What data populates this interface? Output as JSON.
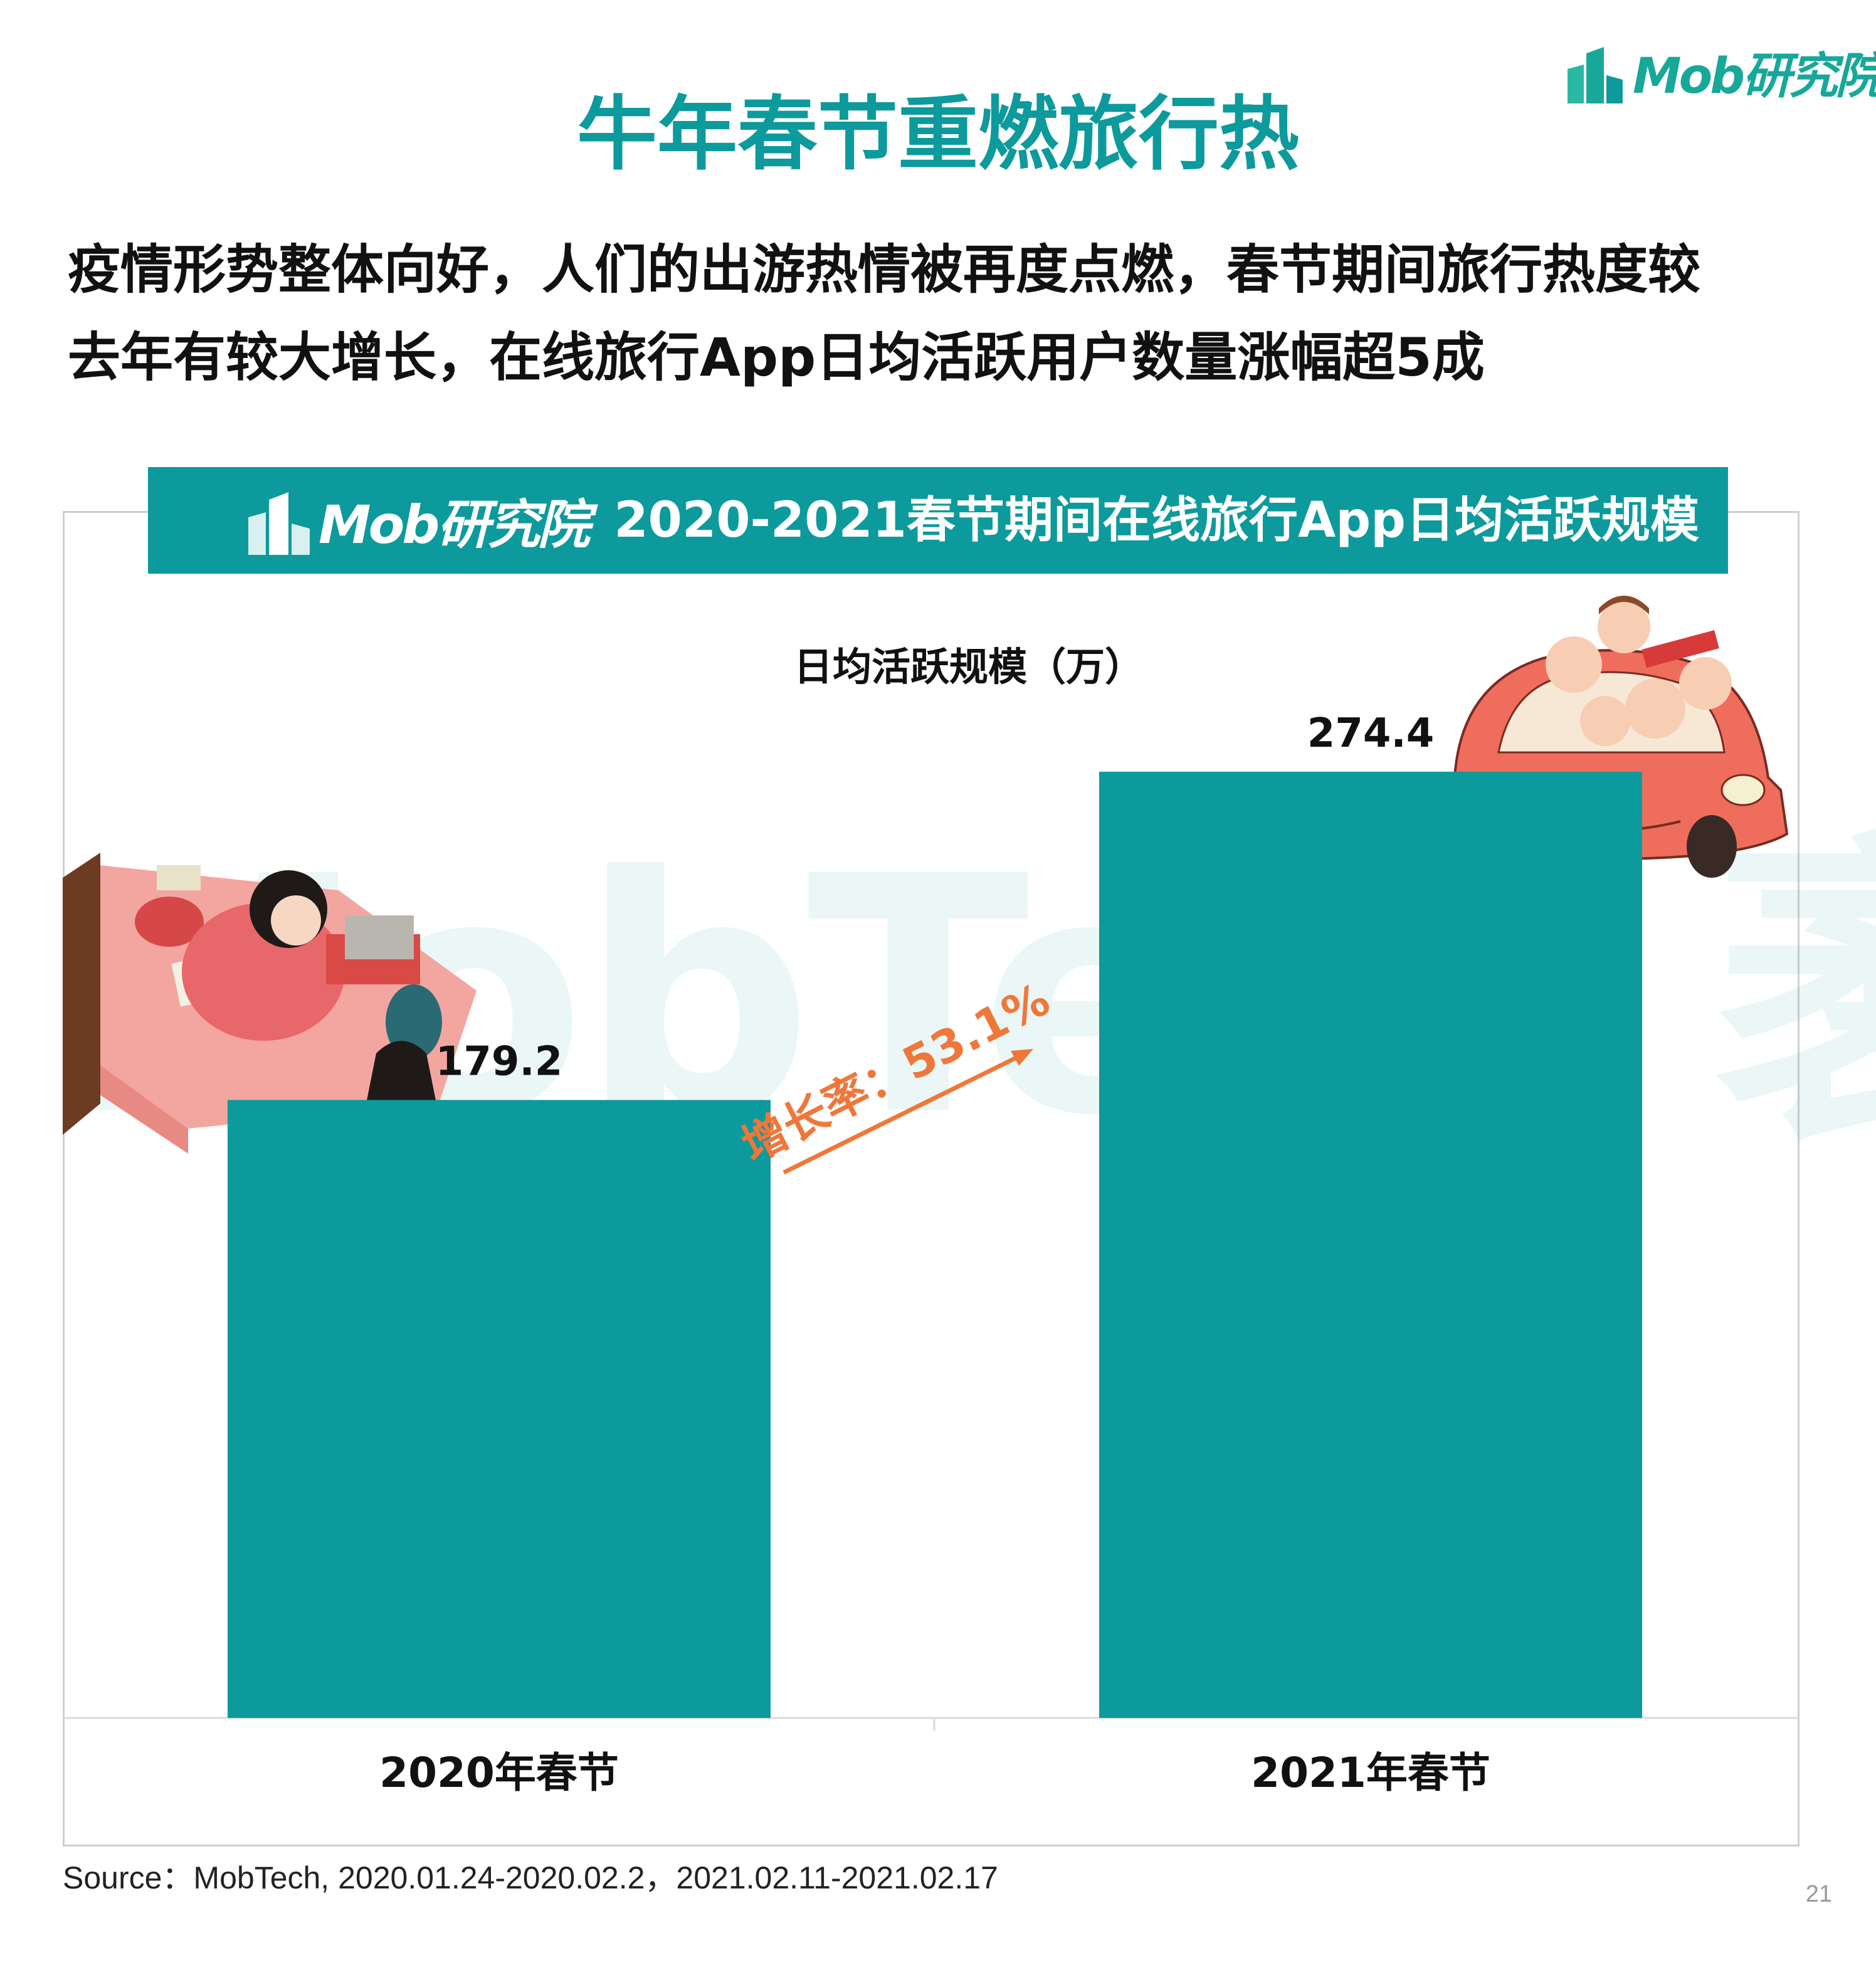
{
  "header": {
    "logo_text": "Mob研究院",
    "title": "牛年春节重燃旅行热",
    "subtitle_line1": "疫情形势整体向好，人们的出游热情被再度点燃，春节期间旅行热度较",
    "subtitle_line2": "去年有较大增长，在线旅行App日均活跃用户数量涨幅超5成"
  },
  "banner": {
    "logo_text": "Mob研究院",
    "title": "2020-2021春节期间在线旅行App日均活跃规模"
  },
  "watermark": "MobTech 袤博",
  "chart_data": {
    "type": "bar",
    "title": "日均活跃规模（万）",
    "categories": [
      "2020年春节",
      "2021年春节"
    ],
    "values": [
      179.2,
      274.4
    ],
    "value_labels": [
      "179.2",
      "274.4"
    ],
    "ylim": [
      0,
      300
    ],
    "grid": false,
    "bar_color": "#0d9a9c",
    "annotation": {
      "text": "增长率：53.1%",
      "color": "#f0773a"
    }
  },
  "footer": {
    "source": "Source：MobTech, 2020.01.24-2020.02.2，2021.02.11-2021.02.17",
    "page_number": "21"
  }
}
